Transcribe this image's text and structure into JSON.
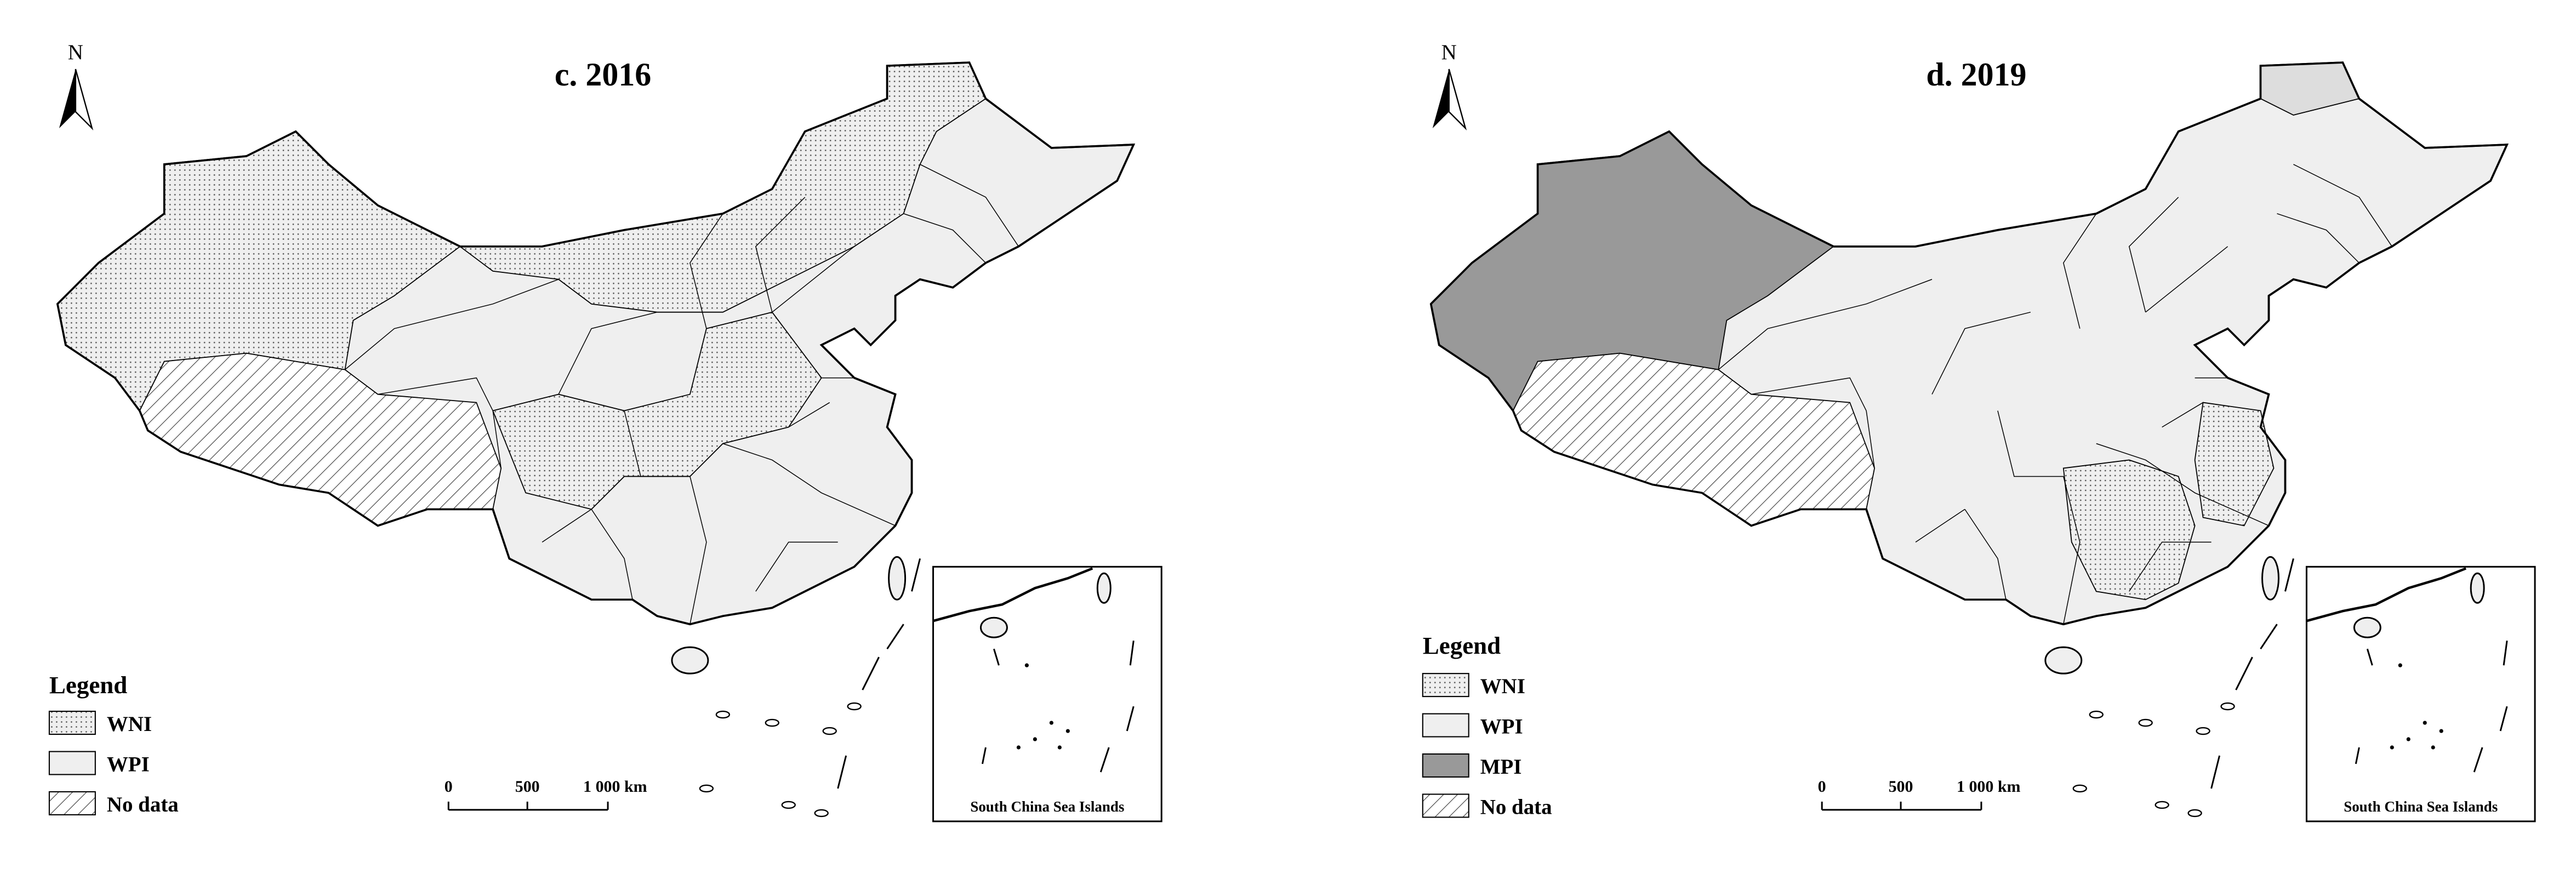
{
  "panels": [
    {
      "title": "c. 2016",
      "north": "N",
      "legend": {
        "title": "Legend",
        "items": [
          "WNI",
          "WPI",
          "No data"
        ]
      },
      "scale": [
        "0",
        "500",
        "1 000 km"
      ],
      "inset": "South China Sea Islands"
    },
    {
      "title": "d. 2019",
      "north": "N",
      "legend": {
        "title": "Legend",
        "items": [
          "WNI",
          "WPI",
          "MPI",
          "No data"
        ]
      },
      "scale": [
        "0",
        "500",
        "1 000 km"
      ],
      "inset": "South China Sea Islands"
    }
  ]
}
